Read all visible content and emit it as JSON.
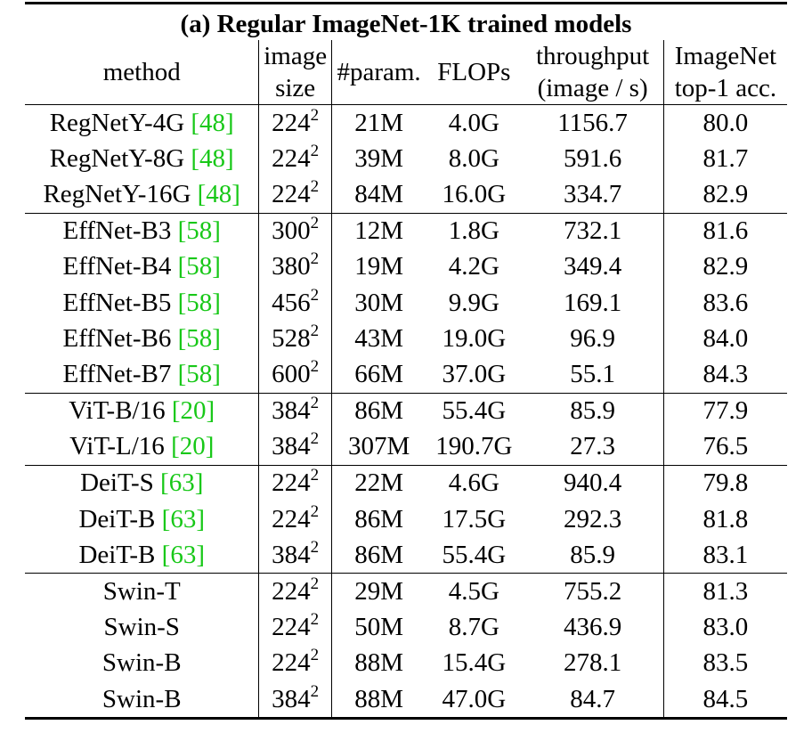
{
  "table": {
    "title": "(a) Regular ImageNet-1K trained models",
    "headers": {
      "method": "method",
      "image_size_line1": "image",
      "image_size_line2": "size",
      "param": "#param.",
      "flops": "FLOPs",
      "throughput_line1": "throughput",
      "throughput_line2": "(image / s)",
      "acc_line1": "ImageNet",
      "acc_line2": "top-1 acc."
    },
    "groups": [
      [
        {
          "method": "RegNetY-4G ",
          "cite": "[48]",
          "size_base": "224",
          "size_exp": "2",
          "param": "21M",
          "flops": "4.0G",
          "throughput": "1156.7",
          "acc": "80.0"
        },
        {
          "method": "RegNetY-8G ",
          "cite": "[48]",
          "size_base": "224",
          "size_exp": "2",
          "param": "39M",
          "flops": "8.0G",
          "throughput": "591.6",
          "acc": "81.7"
        },
        {
          "method": "RegNetY-16G ",
          "cite": "[48]",
          "size_base": "224",
          "size_exp": "2",
          "param": "84M",
          "flops": "16.0G",
          "throughput": "334.7",
          "acc": "82.9"
        }
      ],
      [
        {
          "method": "EffNet-B3 ",
          "cite": "[58]",
          "size_base": "300",
          "size_exp": "2",
          "param": "12M",
          "flops": "1.8G",
          "throughput": "732.1",
          "acc": "81.6"
        },
        {
          "method": "EffNet-B4 ",
          "cite": "[58]",
          "size_base": "380",
          "size_exp": "2",
          "param": "19M",
          "flops": "4.2G",
          "throughput": "349.4",
          "acc": "82.9"
        },
        {
          "method": "EffNet-B5 ",
          "cite": "[58]",
          "size_base": "456",
          "size_exp": "2",
          "param": "30M",
          "flops": "9.9G",
          "throughput": "169.1",
          "acc": "83.6"
        },
        {
          "method": "EffNet-B6 ",
          "cite": "[58]",
          "size_base": "528",
          "size_exp": "2",
          "param": "43M",
          "flops": "19.0G",
          "throughput": "96.9",
          "acc": "84.0"
        },
        {
          "method": "EffNet-B7 ",
          "cite": "[58]",
          "size_base": "600",
          "size_exp": "2",
          "param": "66M",
          "flops": "37.0G",
          "throughput": "55.1",
          "acc": "84.3"
        }
      ],
      [
        {
          "method": "ViT-B/16 ",
          "cite": "[20]",
          "size_base": "384",
          "size_exp": "2",
          "param": "86M",
          "flops": "55.4G",
          "throughput": "85.9",
          "acc": "77.9"
        },
        {
          "method": "ViT-L/16 ",
          "cite": "[20]",
          "size_base": "384",
          "size_exp": "2",
          "param": "307M",
          "flops": "190.7G",
          "throughput": "27.3",
          "acc": "76.5"
        }
      ],
      [
        {
          "method": "DeiT-S ",
          "cite": "[63]",
          "size_base": "224",
          "size_exp": "2",
          "param": "22M",
          "flops": "4.6G",
          "throughput": "940.4",
          "acc": "79.8"
        },
        {
          "method": "DeiT-B ",
          "cite": "[63]",
          "size_base": "224",
          "size_exp": "2",
          "param": "86M",
          "flops": "17.5G",
          "throughput": "292.3",
          "acc": "81.8"
        },
        {
          "method": "DeiT-B ",
          "cite": "[63]",
          "size_base": "384",
          "size_exp": "2",
          "param": "86M",
          "flops": "55.4G",
          "throughput": "85.9",
          "acc": "83.1"
        }
      ],
      [
        {
          "method": "Swin-T",
          "cite": "",
          "size_base": "224",
          "size_exp": "2",
          "param": "29M",
          "flops": "4.5G",
          "throughput": "755.2",
          "acc": "81.3"
        },
        {
          "method": "Swin-S",
          "cite": "",
          "size_base": "224",
          "size_exp": "2",
          "param": "50M",
          "flops": "8.7G",
          "throughput": "436.9",
          "acc": "83.0"
        },
        {
          "method": "Swin-B",
          "cite": "",
          "size_base": "224",
          "size_exp": "2",
          "param": "88M",
          "flops": "15.4G",
          "throughput": "278.1",
          "acc": "83.5"
        },
        {
          "method": "Swin-B",
          "cite": "",
          "size_base": "384",
          "size_exp": "2",
          "param": "88M",
          "flops": "47.0G",
          "throughput": "84.7",
          "acc": "84.5"
        }
      ]
    ]
  }
}
